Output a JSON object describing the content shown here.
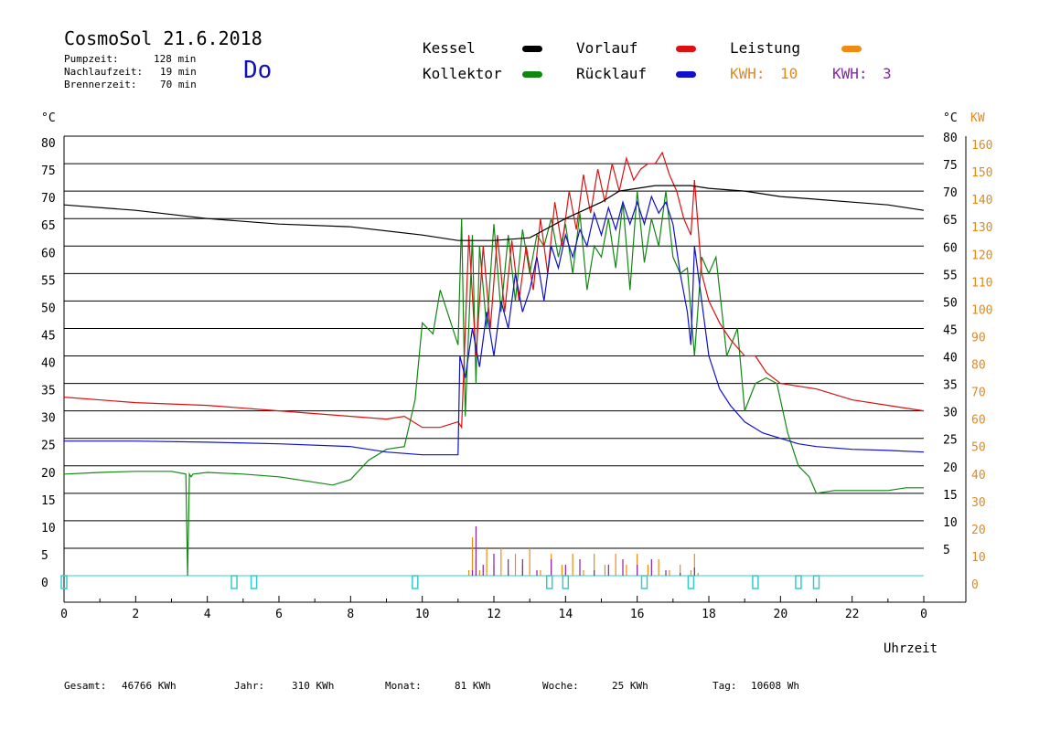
{
  "header": {
    "title": "CosmoSol 21.6.2018",
    "weekday": "Do",
    "stats": [
      {
        "label": "Pumpzeit:",
        "value": "128 min"
      },
      {
        "label": "Nachlaufzeit:",
        "value": "19 min"
      },
      {
        "label": "Brennerzeit:",
        "value": "70 min"
      }
    ]
  },
  "legend": {
    "kessel": {
      "label": "Kessel",
      "color": "#000000"
    },
    "vorlauf": {
      "label": "Vorlauf",
      "color": "#dd1111"
    },
    "leistung": {
      "label": "Leistung",
      "color": "#f08a10"
    },
    "kollektor": {
      "label": "Kollektor",
      "color": "#118811"
    },
    "ruecklauf": {
      "label": "Rücklauf",
      "color": "#1111cc"
    },
    "kwh1": {
      "label": "KWH:",
      "value": "10",
      "color": "#e08a20"
    },
    "kwh2": {
      "label": "KWH:",
      "value": "3",
      "color": "#8822aa"
    }
  },
  "footer": [
    {
      "label": "Gesamt:",
      "value": "46766 KWh"
    },
    {
      "label": "Jahr:",
      "value": "310 KWh"
    },
    {
      "label": "Monat:",
      "value": "81 KWh"
    },
    {
      "label": "Woche:",
      "value": "25 KWh"
    },
    {
      "label": "Tag:",
      "value": "10608 Wh"
    }
  ],
  "chart_data": {
    "type": "line",
    "xlabel": "Uhrzeit",
    "ylabel_left": "°C",
    "ylabel_right_temp": "°C",
    "ylabel_right_power": "KW",
    "xlim": [
      0,
      24
    ],
    "ylim": [
      -5,
      82.5
    ],
    "x_ticks": [
      "0",
      "2",
      "4",
      "6",
      "8",
      "10",
      "12",
      "14",
      "16",
      "18",
      "20",
      "22",
      "0"
    ],
    "y_ticks_left": [
      0,
      5,
      10,
      15,
      20,
      25,
      30,
      35,
      40,
      45,
      50,
      55,
      60,
      65,
      70,
      75,
      80
    ],
    "y_ticks_right_temp": [
      5,
      10,
      15,
      20,
      25,
      30,
      35,
      40,
      45,
      50,
      55,
      60,
      65,
      70,
      75,
      80
    ],
    "y_ticks_right_power": [
      0,
      10,
      20,
      30,
      40,
      50,
      60,
      70,
      80,
      90,
      100,
      110,
      120,
      130,
      140,
      150,
      160
    ],
    "grid": true,
    "series": [
      {
        "name": "Kessel",
        "color": "#000000",
        "x": [
          0,
          2,
          4,
          6,
          8,
          10,
          11,
          12,
          13,
          14,
          15,
          15.5,
          16,
          16.5,
          17,
          17.5,
          18,
          19,
          20,
          21,
          22,
          23,
          24
        ],
        "y": [
          67.5,
          66.5,
          65,
          64,
          63.5,
          62,
          61,
          61,
          61.5,
          65,
          68,
          70,
          70.5,
          71,
          71,
          71,
          70.5,
          70,
          69,
          68.5,
          68,
          67.5,
          66.5
        ]
      },
      {
        "name": "Vorlauf",
        "color": "#dd1111",
        "x": [
          0,
          2,
          4,
          6,
          8,
          9,
          9.5,
          10,
          10.5,
          11,
          11.1,
          11.3,
          11.5,
          11.7,
          11.9,
          12.1,
          12.3,
          12.5,
          12.7,
          12.9,
          13.1,
          13.3,
          13.5,
          13.7,
          13.9,
          14.1,
          14.3,
          14.5,
          14.7,
          14.9,
          15.1,
          15.3,
          15.5,
          15.7,
          15.9,
          16.1,
          16.3,
          16.5,
          16.7,
          16.9,
          17.1,
          17.3,
          17.5,
          17.6,
          17.8,
          18,
          18.3,
          18.6,
          19,
          19.3,
          19.6,
          20,
          21,
          22,
          23,
          24
        ],
        "y": [
          32.5,
          31.5,
          31,
          30,
          29,
          28.5,
          29,
          27,
          27,
          28,
          27,
          62,
          40,
          60,
          45,
          62,
          48,
          61,
          50,
          60,
          52,
          65,
          55,
          68,
          60,
          70,
          63,
          73,
          66,
          74,
          68,
          75,
          70,
          76,
          72,
          74,
          75,
          75,
          77,
          73,
          70,
          65,
          62,
          72,
          55,
          50,
          46,
          43,
          40,
          40,
          37,
          35,
          34,
          32,
          31,
          30
        ]
      },
      {
        "name": "Rücklauf",
        "color": "#1111cc",
        "x": [
          0,
          2,
          4,
          6,
          8,
          9,
          10,
          11,
          11.05,
          11.2,
          11.4,
          11.6,
          11.8,
          12,
          12.2,
          12.4,
          12.6,
          12.8,
          13,
          13.2,
          13.4,
          13.6,
          13.8,
          14,
          14.2,
          14.4,
          14.6,
          14.8,
          15,
          15.2,
          15.4,
          15.6,
          15.8,
          16,
          16.2,
          16.4,
          16.6,
          16.8,
          17,
          17.2,
          17.4,
          17.5,
          17.6,
          17.8,
          18,
          18.3,
          18.6,
          19,
          19.5,
          20,
          20.5,
          21,
          22,
          23,
          24
        ],
        "y": [
          24.5,
          24.5,
          24.3,
          24,
          23.5,
          22.5,
          22,
          22,
          40,
          36,
          45,
          38,
          48,
          40,
          50,
          45,
          55,
          48,
          52,
          58,
          50,
          60,
          56,
          62,
          58,
          63,
          60,
          66,
          62,
          67,
          63,
          68,
          64,
          68,
          64,
          69,
          66,
          68,
          64,
          55,
          48,
          42,
          60,
          50,
          40,
          34,
          31,
          28,
          26,
          25,
          24,
          23.5,
          23,
          22.8,
          22.5
        ]
      },
      {
        "name": "Kollektor",
        "color": "#118811",
        "x": [
          0,
          1,
          2,
          3,
          3.4,
          3.45,
          3.5,
          3.55,
          3.6,
          4,
          5,
          6,
          7,
          7.5,
          8,
          8.5,
          9,
          9.5,
          9.8,
          10,
          10.3,
          10.5,
          10.8,
          11,
          11.1,
          11.2,
          11.4,
          11.5,
          11.6,
          11.8,
          12,
          12.2,
          12.4,
          12.6,
          12.8,
          13,
          13.2,
          13.4,
          13.6,
          13.8,
          14,
          14.2,
          14.4,
          14.6,
          14.8,
          15,
          15.2,
          15.4,
          15.6,
          15.8,
          16,
          16.2,
          16.4,
          16.6,
          16.8,
          17,
          17.2,
          17.4,
          17.6,
          17.8,
          18,
          18.2,
          18.5,
          18.8,
          19,
          19.3,
          19.6,
          19.9,
          20.2,
          20.5,
          20.8,
          21,
          21.5,
          22,
          22.5,
          23,
          23.5,
          24
        ],
        "y": [
          18.5,
          18.8,
          19,
          19,
          18.5,
          0,
          18.5,
          18,
          18.5,
          18.8,
          18.5,
          18,
          17,
          16.5,
          17.5,
          21,
          23,
          23.5,
          32,
          46,
          44,
          52,
          46,
          42,
          65,
          29,
          62,
          35,
          60,
          45,
          64,
          48,
          62,
          50,
          63,
          55,
          62,
          60,
          65,
          58,
          64,
          55,
          66,
          52,
          60,
          58,
          65,
          56,
          68,
          52,
          70,
          57,
          65,
          60,
          70,
          58,
          55,
          56,
          40,
          58,
          55,
          58,
          40,
          45,
          30,
          35,
          36,
          35,
          26,
          20,
          18,
          15,
          15.5,
          15.5,
          15.5,
          15.5,
          16,
          16
        ]
      }
    ],
    "power_series": [
      {
        "name": "Leistung",
        "color": "#f08a10",
        "x": [
          11.3,
          11.4,
          11.5,
          11.6,
          11.8,
          12,
          12.2,
          12.4,
          12.6,
          12.8,
          13,
          13.3,
          13.6,
          13.9,
          14.2,
          14.5,
          14.8,
          15.1,
          15.4,
          15.7,
          16,
          16.3,
          16.6,
          16.9,
          17.2,
          17.5,
          17.6,
          17.7
        ],
        "y": [
          1,
          7,
          3,
          1,
          5,
          2,
          5,
          1,
          4,
          2,
          5,
          1,
          4,
          2,
          4,
          1,
          4,
          2,
          4,
          2,
          4,
          2,
          3,
          1,
          2,
          1,
          4,
          0.5
        ]
      },
      {
        "name": "KWH: 3",
        "color": "#8822aa",
        "x": [
          11.4,
          11.5,
          11.7,
          12,
          12.4,
          12.8,
          13.2,
          13.6,
          14,
          14.4,
          14.8,
          15.2,
          15.6,
          16,
          16.4,
          16.8,
          17.2,
          17.6
        ],
        "y": [
          1,
          9,
          2,
          4,
          3,
          3,
          1,
          3,
          2,
          3,
          1,
          2,
          3,
          2,
          3,
          1,
          0.5,
          1.5
        ]
      }
    ],
    "pump_markers": [
      {
        "x": 0,
        "y": 0
      },
      {
        "x": 4.75,
        "y": -0.8
      },
      {
        "x": 5.3,
        "y": -0.8
      },
      {
        "x": 9.8,
        "y": -0.8
      },
      {
        "x": 13.55,
        "y": -0.8
      },
      {
        "x": 14,
        "y": -0.8
      },
      {
        "x": 16.2,
        "y": -0.8
      },
      {
        "x": 17.5,
        "y": -0.8
      },
      {
        "x": 19.3,
        "y": -0.8
      },
      {
        "x": 20.5,
        "y": -0.8
      },
      {
        "x": 21,
        "y": -0.8
      }
    ],
    "pump_color": "#33cccc"
  }
}
